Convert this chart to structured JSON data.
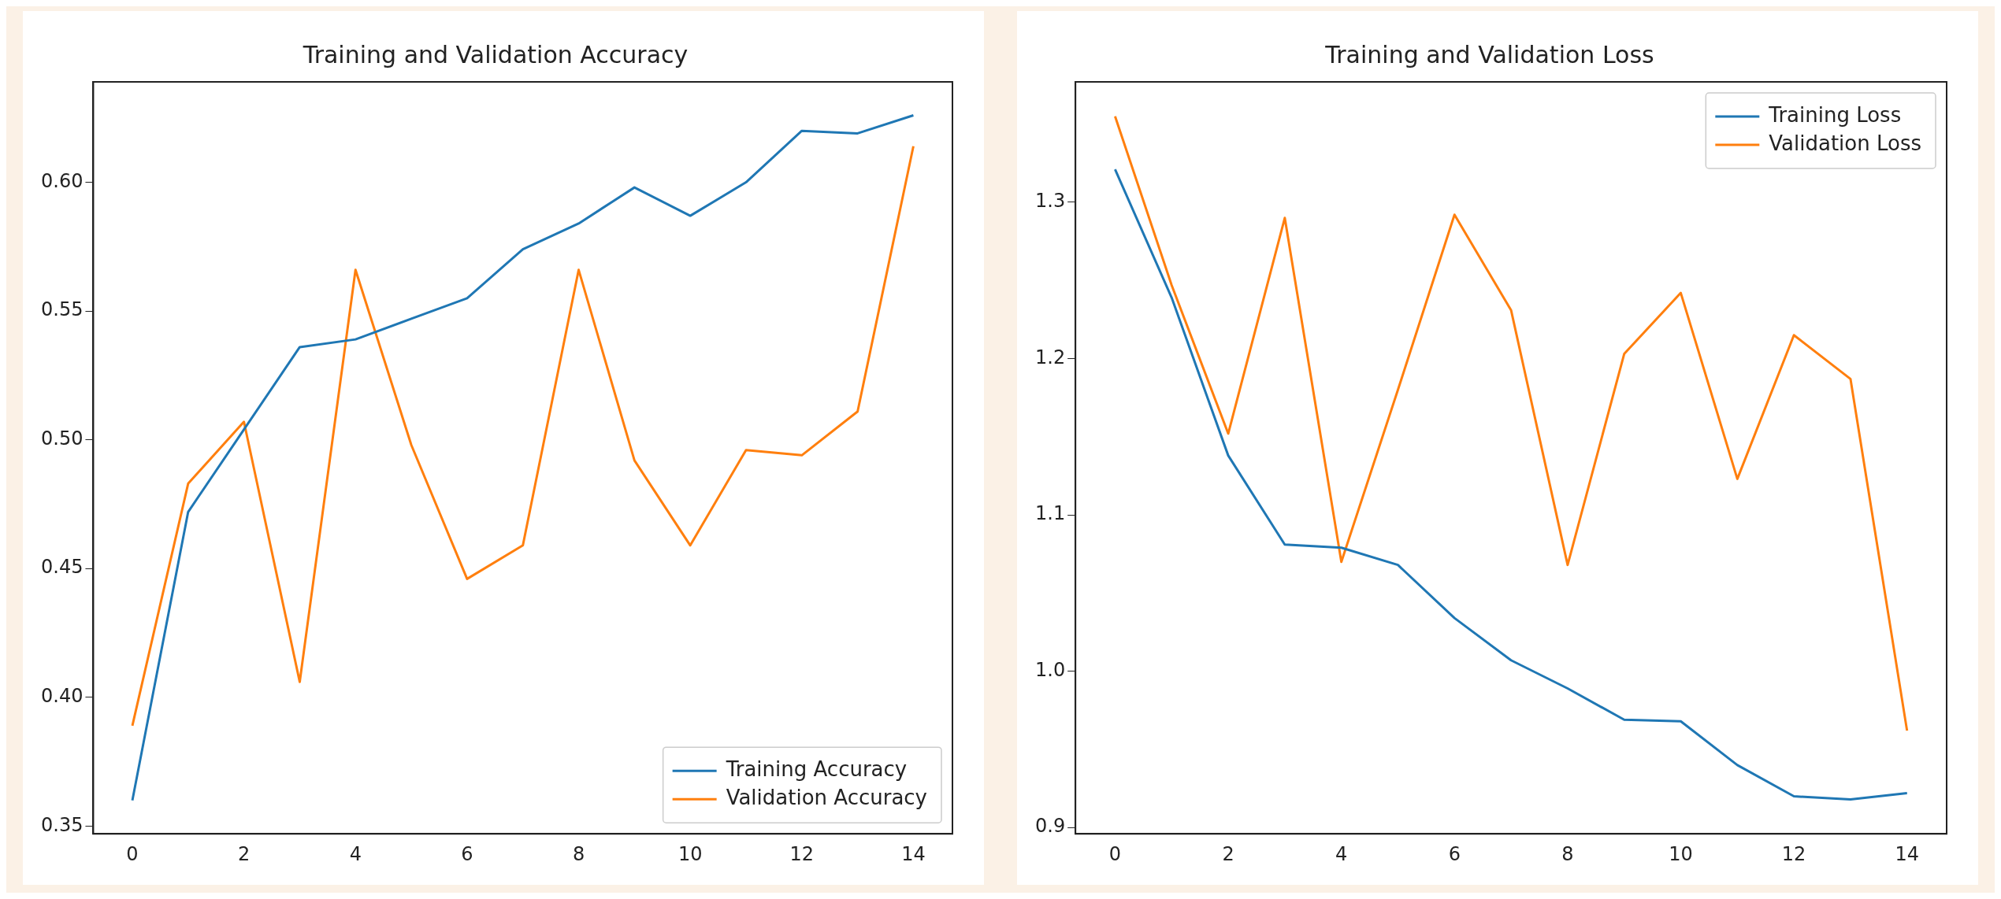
{
  "chart_data": [
    {
      "type": "line",
      "title": "Training and Validation Accuracy",
      "x": [
        0,
        1,
        2,
        3,
        4,
        5,
        6,
        7,
        8,
        9,
        10,
        11,
        12,
        13,
        14
      ],
      "series": [
        {
          "name": "Training Accuracy",
          "color": "#1f77b4",
          "values": [
            0.36,
            0.472,
            0.504,
            0.536,
            0.539,
            0.547,
            0.555,
            0.574,
            0.584,
            0.598,
            0.587,
            0.6,
            0.62,
            0.619,
            0.626
          ]
        },
        {
          "name": "Validation Accuracy",
          "color": "#ff7f0e",
          "values": [
            0.389,
            0.483,
            0.507,
            0.406,
            0.566,
            0.498,
            0.446,
            0.459,
            0.566,
            0.492,
            0.459,
            0.496,
            0.494,
            0.511,
            0.614
          ]
        }
      ],
      "xlim": [
        -0.7,
        14.7
      ],
      "xticks": [
        0,
        2,
        4,
        6,
        8,
        10,
        12,
        14
      ],
      "ylim": [
        0.347,
        0.639
      ],
      "yticks": [
        {
          "value": 0.35,
          "label": "0.35"
        },
        {
          "value": 0.4,
          "label": "0.40"
        },
        {
          "value": 0.45,
          "label": "0.45"
        },
        {
          "value": 0.5,
          "label": "0.50"
        },
        {
          "value": 0.55,
          "label": "0.55"
        },
        {
          "value": 0.6,
          "label": "0.60"
        }
      ],
      "grid": false,
      "legend": "bottom right"
    },
    {
      "type": "line",
      "title": "Training and Validation Loss",
      "x": [
        0,
        1,
        2,
        3,
        4,
        5,
        6,
        7,
        8,
        9,
        10,
        11,
        12,
        13,
        14
      ],
      "series": [
        {
          "name": "Training Loss",
          "color": "#1f77b4",
          "values": [
            1.321,
            1.239,
            1.138,
            1.081,
            1.079,
            1.068,
            1.034,
            1.007,
            0.989,
            0.969,
            0.968,
            0.94,
            0.92,
            0.918,
            0.922
          ]
        },
        {
          "name": "Validation Loss",
          "color": "#ff7f0e",
          "values": [
            1.355,
            1.247,
            1.152,
            1.29,
            1.07,
            1.18,
            1.292,
            1.231,
            1.068,
            1.203,
            1.242,
            1.123,
            1.215,
            1.187,
            0.962
          ]
        }
      ],
      "xlim": [
        -0.7,
        14.7
      ],
      "xticks": [
        0,
        2,
        4,
        6,
        8,
        10,
        12,
        14
      ],
      "ylim": [
        0.896,
        1.377
      ],
      "yticks": [
        {
          "value": 0.9,
          "label": "0.9"
        },
        {
          "value": 1.0,
          "label": "1.0"
        },
        {
          "value": 1.1,
          "label": "1.1"
        },
        {
          "value": 1.2,
          "label": "1.2"
        },
        {
          "value": 1.3,
          "label": "1.3"
        }
      ],
      "grid": false,
      "legend": "top right"
    }
  ]
}
